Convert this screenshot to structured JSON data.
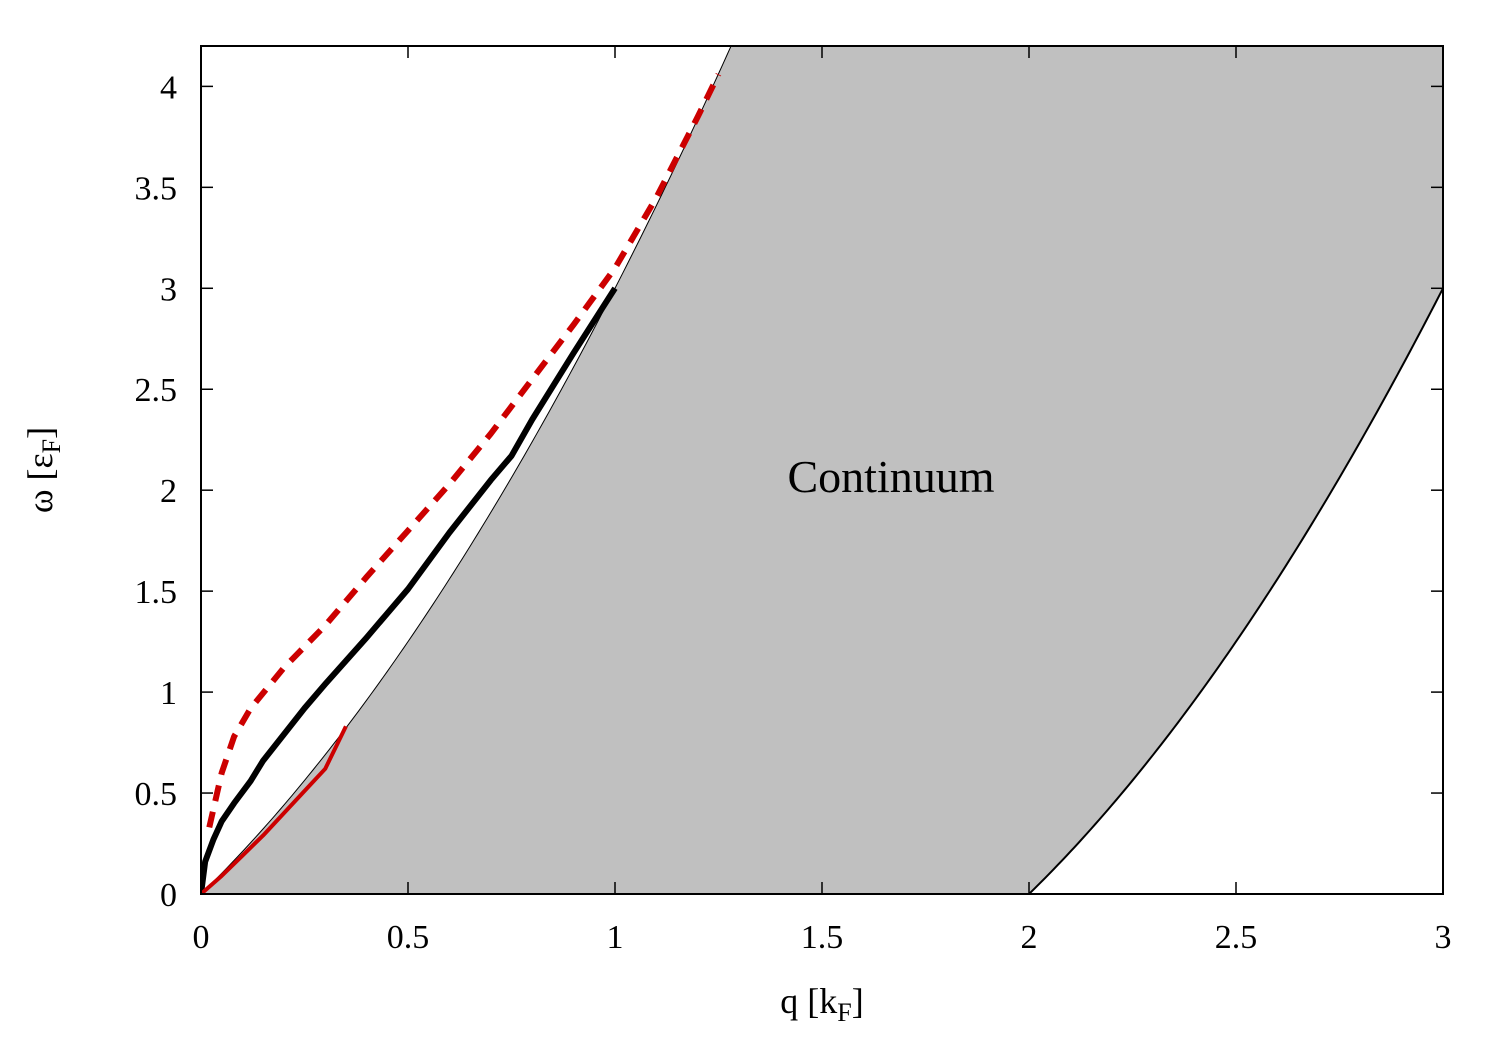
{
  "chart_data": {
    "type": "line",
    "xlabel": {
      "main": "q [k",
      "sub": "F",
      "close": "]"
    },
    "ylabel": {
      "main": "ω [ε",
      "sub": "F",
      "close": "]"
    },
    "xlim": [
      0,
      3
    ],
    "ylim": [
      0,
      4.2
    ],
    "xticks": [
      0,
      0.5,
      1,
      1.5,
      2,
      2.5,
      3
    ],
    "xtick_labels": [
      "0",
      "0.5",
      "1",
      "1.5",
      "2",
      "2.5",
      "3"
    ],
    "yticks": [
      0,
      0.5,
      1,
      1.5,
      2,
      2.5,
      3,
      3.5,
      4
    ],
    "ytick_labels": [
      "0",
      "0.5",
      "1",
      "1.5",
      "2",
      "2.5",
      "3",
      "3.5",
      "4"
    ],
    "grid": false,
    "legend": "none",
    "annotations": [
      {
        "text": "Continuum",
        "x": 1.66,
        "y": 2.07
      }
    ],
    "continuum": {
      "fill": "#c0c0c0",
      "upper_boundary": "ω = q² + 2q",
      "lower_boundary": "ω = max(0, q² − 2q)"
    },
    "series": [
      {
        "color": "#000000",
        "style": "solid",
        "width": "thick",
        "points": [
          [
            0,
            0
          ],
          [
            0.01,
            0.16
          ],
          [
            0.03,
            0.27
          ],
          [
            0.05,
            0.36
          ],
          [
            0.08,
            0.45
          ],
          [
            0.12,
            0.56
          ],
          [
            0.15,
            0.66
          ],
          [
            0.2,
            0.79
          ],
          [
            0.25,
            0.92
          ],
          [
            0.3,
            1.04
          ],
          [
            0.4,
            1.27
          ],
          [
            0.5,
            1.51
          ],
          [
            0.6,
            1.79
          ],
          [
            0.7,
            2.05
          ],
          [
            0.75,
            2.17
          ],
          [
            0.8,
            2.35
          ],
          [
            0.9,
            2.68
          ],
          [
            1.0,
            3.0
          ]
        ]
      },
      {
        "color": "#cc0000",
        "style": "dashed",
        "width": "thick",
        "points": [
          [
            0.02,
            0.33
          ],
          [
            0.05,
            0.6
          ],
          [
            0.08,
            0.78
          ],
          [
            0.12,
            0.92
          ],
          [
            0.2,
            1.12
          ],
          [
            0.3,
            1.33
          ],
          [
            0.4,
            1.57
          ],
          [
            0.5,
            1.8
          ],
          [
            0.6,
            2.03
          ],
          [
            0.7,
            2.28
          ],
          [
            0.8,
            2.55
          ],
          [
            0.9,
            2.82
          ],
          [
            1.0,
            3.1
          ],
          [
            1.1,
            3.45
          ],
          [
            1.2,
            3.85
          ],
          [
            1.25,
            4.06
          ]
        ]
      },
      {
        "color": "#cc0000",
        "style": "solid",
        "width": "medium",
        "points": [
          [
            0,
            0
          ],
          [
            0.05,
            0.09
          ],
          [
            0.1,
            0.19
          ],
          [
            0.15,
            0.29
          ],
          [
            0.2,
            0.4
          ],
          [
            0.25,
            0.51
          ],
          [
            0.3,
            0.62
          ],
          [
            0.35,
            0.83
          ]
        ]
      }
    ]
  }
}
